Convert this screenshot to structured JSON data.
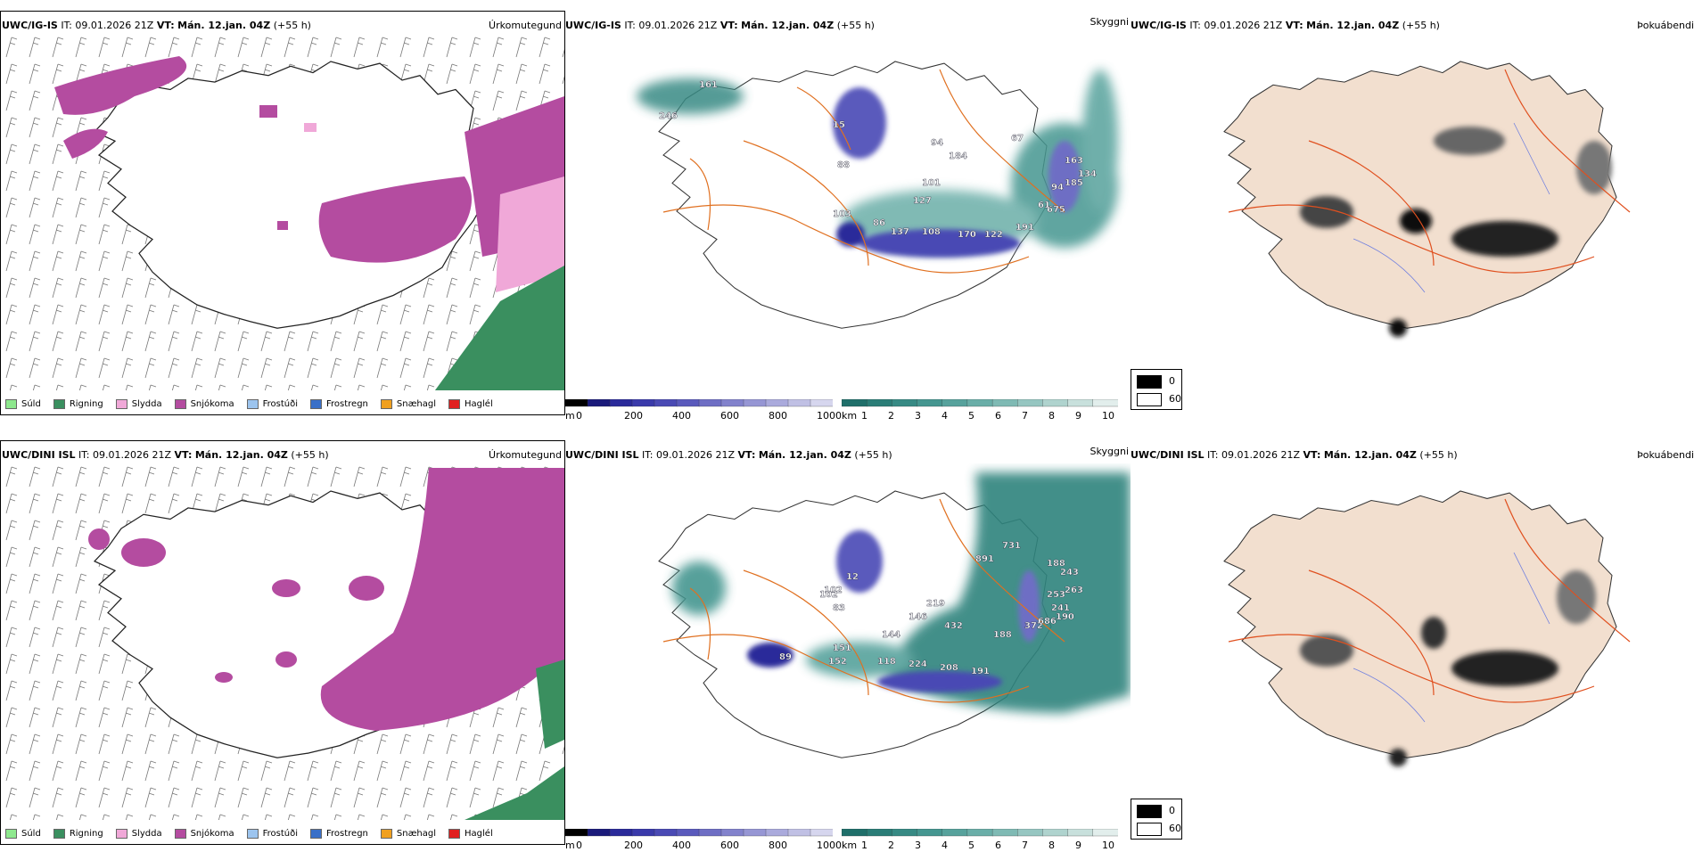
{
  "rows": [
    {
      "model": "UWC/IG-IS",
      "it_label": "IT:",
      "it": "09.01.2026 21Z",
      "vt_label": "VT:",
      "vt": "Mán. 12.jan. 04Z",
      "lead": "(+55 h)",
      "cloud_labels": [
        "161",
        "246",
        "15",
        "88",
        "94",
        "184",
        "101",
        "127",
        "103",
        "86",
        "137",
        "108",
        "170",
        "122",
        "191",
        "675",
        "185",
        "134",
        "163",
        "61",
        "94",
        "67"
      ]
    },
    {
      "model": "UWC/DINI ISL",
      "it_label": "IT:",
      "it": "09.01.2026 21Z",
      "vt_label": "VT:",
      "vt": "Mán. 12.jan. 04Z",
      "lead": "(+55 h)",
      "cloud_labels": [
        "731",
        "891",
        "188",
        "243",
        "263",
        "253",
        "241",
        "190",
        "372",
        "686",
        "102",
        "12",
        "83",
        "102",
        "219",
        "146",
        "432",
        "144",
        "188",
        "151",
        "152",
        "89",
        "118",
        "224",
        "208",
        "191"
      ]
    }
  ],
  "panels": {
    "precip_type": "Úrkomutegund",
    "visibility": "Skyggni",
    "fog": "Þokuábendi"
  },
  "precip_legend": [
    {
      "label": "Súld",
      "color": "#8ee88e"
    },
    {
      "label": "Rigning",
      "color": "#3a8f5f"
    },
    {
      "label": "Slydda",
      "color": "#f0a8d8"
    },
    {
      "label": "Snjókoma",
      "color": "#b44ca0"
    },
    {
      "label": "Frostúði",
      "color": "#9cc4ee"
    },
    {
      "label": "Frostregn",
      "color": "#3a70c8"
    },
    {
      "label": "Snæhagl",
      "color": "#f0a020"
    },
    {
      "label": "Haglél",
      "color": "#e02020"
    }
  ],
  "ceiling_bar": {
    "unit": "m",
    "ticks": [
      "0",
      "200",
      "400",
      "600",
      "800",
      "1000"
    ],
    "colors": [
      "#000000",
      "#1a1a7a",
      "#2a2a9a",
      "#3a3aaa",
      "#4a4ab4",
      "#5a5abc",
      "#6e6ec4",
      "#8282cc",
      "#9696d4",
      "#aaaadc",
      "#c0c0e4",
      "#d6d6ee"
    ]
  },
  "visibility_bar": {
    "unit": "km",
    "ticks": [
      "1",
      "2",
      "3",
      "4",
      "5",
      "6",
      "7",
      "8",
      "9",
      "10"
    ],
    "colors": [
      "#1f6f6a",
      "#2a7d77",
      "#378a84",
      "#459690",
      "#57a29c",
      "#6aaea8",
      "#7fbab4",
      "#96c6c1",
      "#afd3ce",
      "#c8e0dc",
      "#e2eeec"
    ]
  },
  "fog_legend": [
    {
      "label": "0",
      "color": "#000000"
    },
    {
      "label": "60",
      "color": "#ffffff"
    }
  ]
}
